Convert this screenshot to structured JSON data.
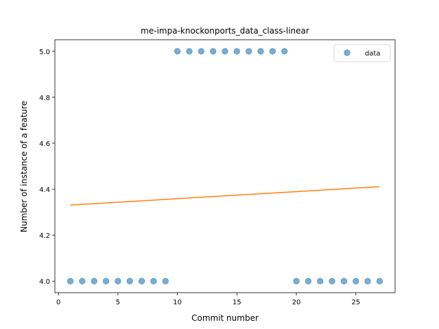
{
  "chart_data": {
    "type": "scatter",
    "title": "me-impa-knockonports_data_class-linear",
    "xlabel": "Commit number",
    "ylabel": "Number of instance of a feature",
    "xlim": [
      -0.3,
      28.3
    ],
    "ylim": [
      3.95,
      5.05
    ],
    "xticks": [
      0,
      5,
      10,
      15,
      20,
      25
    ],
    "yticks": [
      4.0,
      4.2,
      4.4,
      4.6,
      4.8,
      5.0
    ],
    "xtick_labels": [
      "0",
      "5",
      "10",
      "15",
      "20",
      "25"
    ],
    "ytick_labels": [
      "4.0",
      "4.2",
      "4.4",
      "4.6",
      "4.8",
      "5.0"
    ],
    "legend": {
      "position": "top-right",
      "entries": [
        "data"
      ]
    },
    "grid": false,
    "series": [
      {
        "name": "data",
        "kind": "scatter",
        "color": "#1f77b4",
        "x": [
          1,
          2,
          3,
          4,
          5,
          6,
          7,
          8,
          9,
          10,
          11,
          12,
          13,
          14,
          15,
          16,
          17,
          18,
          19,
          20,
          21,
          22,
          23,
          24,
          25,
          26,
          27
        ],
        "y": [
          4,
          4,
          4,
          4,
          4,
          4,
          4,
          4,
          4,
          5,
          5,
          5,
          5,
          5,
          5,
          5,
          5,
          5,
          5,
          4,
          4,
          4,
          4,
          4,
          4,
          4,
          4
        ]
      },
      {
        "kind": "line",
        "color": "#ff7f0e",
        "x": [
          1,
          27
        ],
        "y": [
          4.331,
          4.411
        ]
      }
    ]
  }
}
